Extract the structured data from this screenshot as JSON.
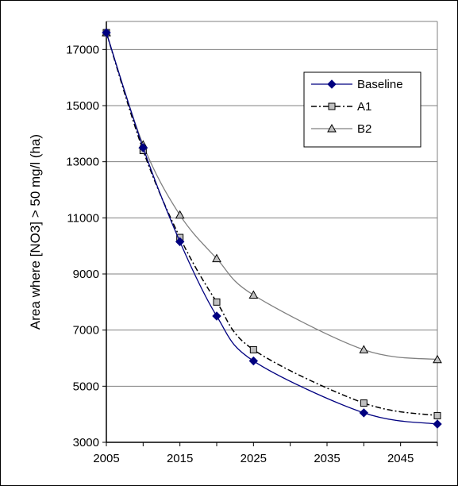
{
  "chart_data": {
    "type": "line",
    "title": "",
    "xlabel": "",
    "ylabel": "Area where [NO3] > 50 mg/l  (ha)",
    "xlim": [
      2005,
      2050
    ],
    "ylim": [
      3000,
      18000
    ],
    "xticks": [
      2005,
      2015,
      2025,
      2035,
      2045
    ],
    "yticks": [
      3000,
      5000,
      7000,
      9000,
      11000,
      13000,
      15000,
      17000
    ],
    "grid": "horizontal",
    "legend_position": "top-right",
    "series": [
      {
        "name": "Baseline",
        "color": "#000080",
        "line": "solid",
        "marker": "diamond",
        "points": [
          [
            2005,
            17600
          ],
          [
            2010,
            13500
          ],
          [
            2015,
            10150
          ],
          [
            2020,
            7500
          ],
          [
            2025,
            5900
          ],
          [
            2040,
            4050
          ],
          [
            2050,
            3650
          ]
        ]
      },
      {
        "name": "A1",
        "color": "#000000",
        "line": "dash-dot",
        "marker": "square",
        "points": [
          [
            2005,
            17600
          ],
          [
            2010,
            13400
          ],
          [
            2015,
            10300
          ],
          [
            2020,
            8000
          ],
          [
            2025,
            6300
          ],
          [
            2040,
            4400
          ],
          [
            2050,
            3950
          ]
        ]
      },
      {
        "name": "B2",
        "color": "#808080",
        "line": "solid",
        "marker": "triangle",
        "points": [
          [
            2005,
            17600
          ],
          [
            2010,
            13600
          ],
          [
            2015,
            11100
          ],
          [
            2020,
            9550
          ],
          [
            2025,
            8250
          ],
          [
            2040,
            6300
          ],
          [
            2050,
            5950
          ]
        ]
      }
    ]
  }
}
